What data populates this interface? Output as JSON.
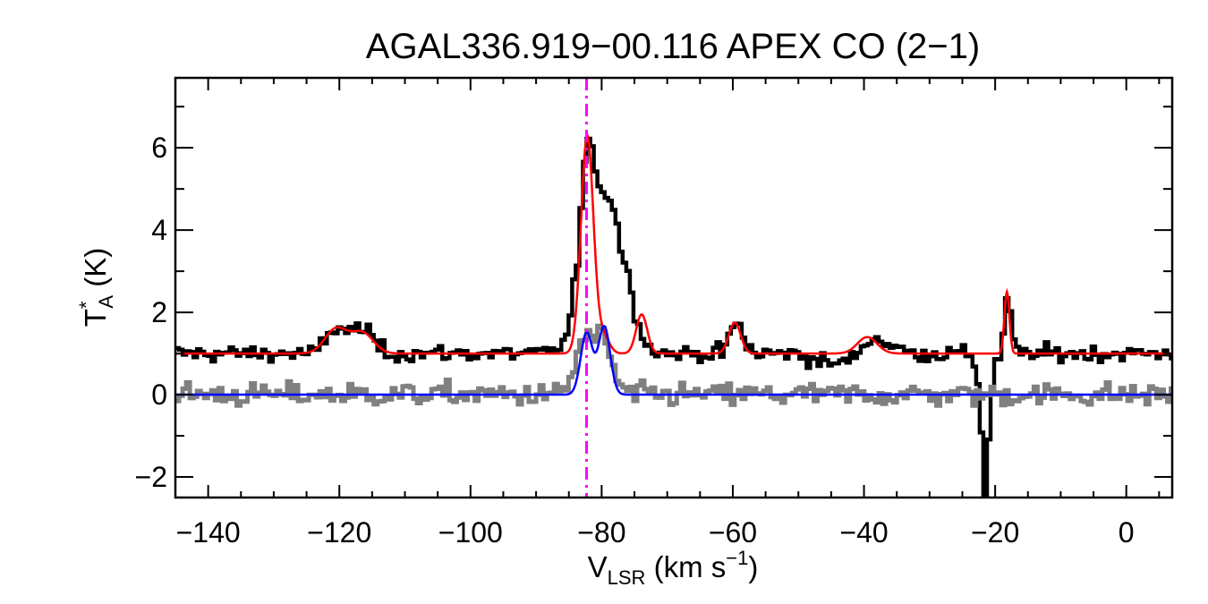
{
  "chart_data": {
    "type": "line",
    "title": "AGAL336.919−00.116  APEX CO (2−1)",
    "xlabel": {
      "main": "V",
      "sub": "LSR",
      "unit_pre": " (km s",
      "unit_sup": "−1",
      "unit_post": ")"
    },
    "ylabel": {
      "main": "T",
      "sup": "*",
      "sub": "A",
      "unit": " (K)"
    },
    "xlim": [
      -145,
      7
    ],
    "ylim": [
      -2.5,
      7.7
    ],
    "x_ticks": [
      {
        "value": -140,
        "label": "−140"
      },
      {
        "value": -120,
        "label": "−120"
      },
      {
        "value": -100,
        "label": "−100"
      },
      {
        "value": -80,
        "label": "−80"
      },
      {
        "value": -60,
        "label": "−60"
      },
      {
        "value": -40,
        "label": "−40"
      },
      {
        "value": -20,
        "label": "−20"
      },
      {
        "value": 0,
        "label": "0"
      }
    ],
    "y_ticks": [
      {
        "value": -2,
        "label": "−2"
      },
      {
        "value": 0,
        "label": "0"
      },
      {
        "value": 2,
        "label": "2"
      },
      {
        "value": 4,
        "label": "4"
      },
      {
        "value": 6,
        "label": "6"
      }
    ],
    "x_minor_step": 5,
    "y_minor_step": 1,
    "reference_line": {
      "x": -82.3,
      "style": "dash-dot",
      "color": "#ff00ff"
    },
    "series": [
      {
        "style": "step",
        "color": "#000000",
        "baseline": 1.0,
        "noise": 0.1,
        "x_step": 0.55,
        "points": [
          [
            -145,
            1.0
          ],
          [
            -124,
            1.0
          ],
          [
            -122,
            1.4
          ],
          [
            -120.5,
            1.7
          ],
          [
            -119,
            1.5
          ],
          [
            -117,
            1.65
          ],
          [
            -115.5,
            1.4
          ],
          [
            -113,
            1.0
          ],
          [
            -88,
            1.0
          ],
          [
            -85.5,
            1.4
          ],
          [
            -84,
            3.2
          ],
          [
            -83,
            5.4
          ],
          [
            -82.3,
            6.2
          ],
          [
            -81.5,
            5.6
          ],
          [
            -80.5,
            5.1
          ],
          [
            -79.5,
            4.9
          ],
          [
            -78.5,
            4.6
          ],
          [
            -77.5,
            3.7
          ],
          [
            -76.5,
            3.2
          ],
          [
            -75.5,
            2.3
          ],
          [
            -75,
            1.7
          ],
          [
            -74.5,
            1.5
          ],
          [
            -74,
            1.6
          ],
          [
            -73,
            1.2
          ],
          [
            -72,
            1.05
          ],
          [
            -70,
            1.0
          ],
          [
            -62,
            1.0
          ],
          [
            -60.5,
            1.5
          ],
          [
            -59.5,
            1.8
          ],
          [
            -58.5,
            1.3
          ],
          [
            -57,
            1.0
          ],
          [
            -50,
            1.0
          ],
          [
            -48,
            0.85
          ],
          [
            -45,
            0.75
          ],
          [
            -42,
            0.85
          ],
          [
            -41,
            1.1
          ],
          [
            -39.5,
            1.35
          ],
          [
            -38,
            1.35
          ],
          [
            -36,
            1.2
          ],
          [
            -34,
            1.05
          ],
          [
            -32,
            1.0
          ],
          [
            -24,
            1.0
          ],
          [
            -23,
            0.5
          ],
          [
            -22.3,
            -1.0
          ],
          [
            -21.8,
            -2.4
          ],
          [
            -21.3,
            -1.2
          ],
          [
            -20.5,
            0.6
          ],
          [
            -19.5,
            1.0
          ],
          [
            -18.8,
            1.6
          ],
          [
            -18.3,
            2.6
          ],
          [
            -17.8,
            1.8
          ],
          [
            -17.2,
            1.0
          ],
          [
            7,
            1.0
          ]
        ]
      },
      {
        "style": "step",
        "color": "#808080",
        "baseline": 0.0,
        "noise": 0.14,
        "x_step": 0.55,
        "points": [
          [
            -145,
            0.0
          ],
          [
            -87,
            0.0
          ],
          [
            -85,
            0.3
          ],
          [
            -83.5,
            1.3
          ],
          [
            -82.5,
            1.5
          ],
          [
            -81.5,
            1.2
          ],
          [
            -80.2,
            1.6
          ],
          [
            -79.3,
            1.2
          ],
          [
            -78,
            0.3
          ],
          [
            -76,
            0.0
          ],
          [
            7,
            0.0
          ]
        ]
      },
      {
        "style": "smooth",
        "color": "#ff0000",
        "baseline": 1.0,
        "components": [
          {
            "amp": 0.6,
            "center": -120.5,
            "sigma": 1.7
          },
          {
            "amp": 0.5,
            "center": -116.5,
            "sigma": 1.7
          },
          {
            "amp": 5.3,
            "center": -82.2,
            "sigma": 0.95
          },
          {
            "amp": 0.4,
            "center": -79.7,
            "sigma": 0.9
          },
          {
            "amp": 0.95,
            "center": -73.9,
            "sigma": 0.85
          },
          {
            "amp": 0.75,
            "center": -59.7,
            "sigma": 0.9
          },
          {
            "amp": 0.4,
            "center": -39.5,
            "sigma": 1.5
          },
          {
            "amp": 1.5,
            "center": -18.2,
            "sigma": 0.38
          }
        ]
      },
      {
        "style": "smooth",
        "color": "#0000ff",
        "baseline": 0.0,
        "components": [
          {
            "amp": 1.5,
            "center": -82.3,
            "sigma": 0.9
          },
          {
            "amp": 1.65,
            "center": -79.6,
            "sigma": 0.9
          }
        ]
      }
    ]
  }
}
